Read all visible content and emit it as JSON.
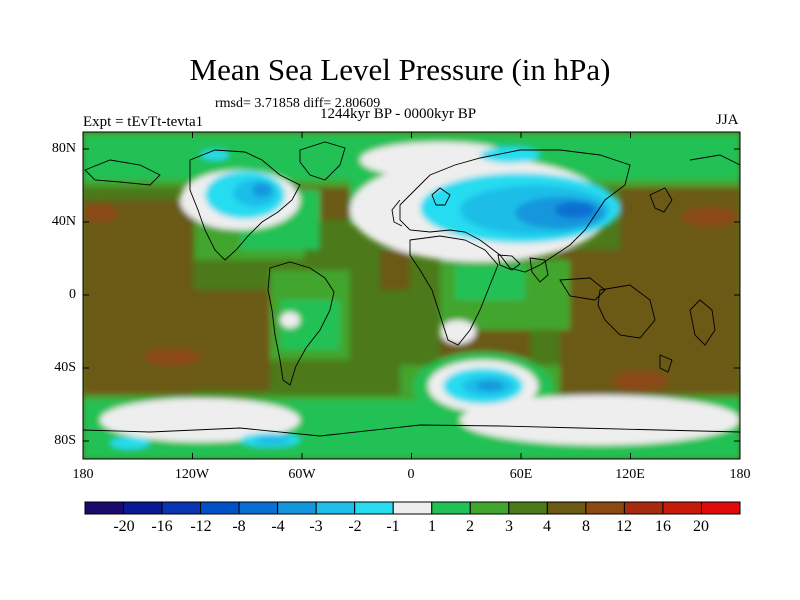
{
  "header": {
    "title": "Mean Sea Level Pressure (in hPa)",
    "stats": "rmsd= 3.71858 diff= 2.80609",
    "period": "1244kyr BP - 0000kyr BP",
    "experiment": "Expt = tEvTt-tevta1",
    "season": "JJA"
  },
  "axes": {
    "lat_labels": [
      "80N",
      "40N",
      "0",
      "40S",
      "80S"
    ],
    "lon_labels": [
      "180",
      "120W",
      "60W",
      "0",
      "60E",
      "120E",
      "180"
    ]
  },
  "colorbar": {
    "labels": [
      "-20",
      "-16",
      "-12",
      "-8",
      "-4",
      "-3",
      "-2",
      "-1",
      "1",
      "2",
      "3",
      "4",
      "8",
      "12",
      "16",
      "20"
    ],
    "colors": [
      "#1a0a6b",
      "#0a1a96",
      "#0a36b4",
      "#0050c8",
      "#0a6ed2",
      "#1496dc",
      "#1ebee8",
      "#28dcf0",
      "#eeeeee",
      "#22c155",
      "#42a52d",
      "#4c7a1a",
      "#6a5a14",
      "#8a4a12",
      "#a82a0e",
      "#c81a0a",
      "#e00a0a"
    ]
  }
}
